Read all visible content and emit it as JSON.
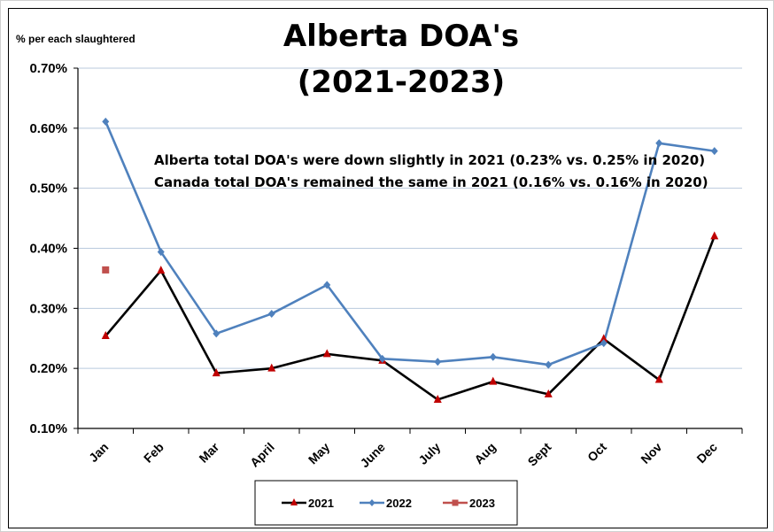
{
  "chart_data": {
    "type": "line",
    "title_lines": [
      "Alberta DOA's",
      "(2021-2023)"
    ],
    "ylabel": "% per each slaughtered",
    "ylim": [
      0.1,
      0.7
    ],
    "yticks": [
      "0.10%",
      "0.20%",
      "0.30%",
      "0.40%",
      "0.50%",
      "0.60%",
      "0.70%"
    ],
    "categories": [
      "Jan",
      "Feb",
      "Mar",
      "April",
      "May",
      "June",
      "July",
      "Aug",
      "Sept",
      "Oct",
      "Nov",
      "Dec"
    ],
    "grid": "horizontal",
    "legend_position": "bottom",
    "annotations": [
      "Alberta total DOA's were down slightly in 2021 (0.23%  vs. 0.25% in 2020)",
      "Canada total DOA's remained the same in 2021 (0.16% vs. 0.16% in 2020)"
    ],
    "series": [
      {
        "name": "2021",
        "color": "#000000",
        "marker": "triangle",
        "marker_color": "#c00000",
        "values": [
          0.254,
          0.363,
          0.192,
          0.2,
          0.224,
          0.213,
          0.148,
          0.178,
          0.157,
          0.249,
          0.181,
          0.42
        ]
      },
      {
        "name": "2022",
        "color": "#4f81bd",
        "marker": "diamond",
        "marker_color": "#4f81bd",
        "values": [
          0.611,
          0.394,
          0.258,
          0.291,
          0.339,
          0.216,
          0.211,
          0.219,
          0.206,
          0.242,
          0.575,
          0.562
        ]
      },
      {
        "name": "2023",
        "color": "#c0504d",
        "marker": "square",
        "marker_color": "#c0504d",
        "values": [
          0.364,
          null,
          null,
          null,
          null,
          null,
          null,
          null,
          null,
          null,
          null,
          null
        ]
      }
    ]
  }
}
